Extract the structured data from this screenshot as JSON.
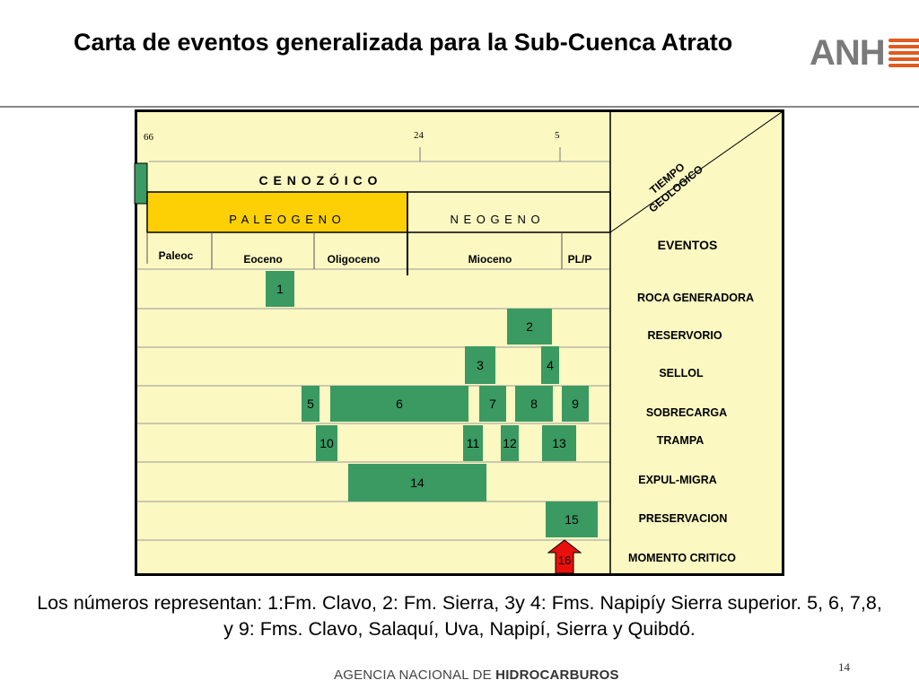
{
  "slide": {
    "title": "Carta de eventos generalizada para la Sub-Cuenca Atrato",
    "logo_text": "ANH",
    "caption": "Los números representan: 1:Fm. Clavo, 2: Fm. Sierra, 3y 4: Fms. Napipíy Sierra superior. 5, 6, 7,8, y 9: Fms. Clavo, Salaquí, Uva, Napipí, Sierra y Quibdó.",
    "page_number": "14",
    "footer_regular": "AGENCIA NACIONAL DE ",
    "footer_bold": "HIDROCARBUROS"
  },
  "colors": {
    "background": "#fbf8c2",
    "paleogeno_fill": "#fdd005",
    "event_bar": "#3a9a62",
    "critical_arrow": "#e8100c",
    "logo_accent": "#e05a1f"
  },
  "chart": {
    "time_ticks": [
      "66",
      "24",
      "5"
    ],
    "era": "C E N O Z Ó I C O",
    "periods": [
      "P A L E O G E N O",
      "N E O G E N O"
    ],
    "epochs": [
      "Paleoc",
      "Eoceno",
      "Oligoceno",
      "Mioceno",
      "PL/P"
    ],
    "corner_label": "TIEMPO GEOLOGICO",
    "events_header": "EVENTOS",
    "event_names": [
      "ROCA GENERADORA",
      "RESERVORIO",
      "SELLOL",
      "SOBRECARGA",
      "TRAMPA",
      "EXPUL-MIGRA",
      "PRESERVACION",
      "MOMENTO CRITICO"
    ],
    "bars": [
      "1",
      "2",
      "3",
      "4",
      "5",
      "6",
      "7",
      "8",
      "9",
      "10",
      "11",
      "12",
      "13",
      "14",
      "15"
    ],
    "critical_marker": "16"
  }
}
